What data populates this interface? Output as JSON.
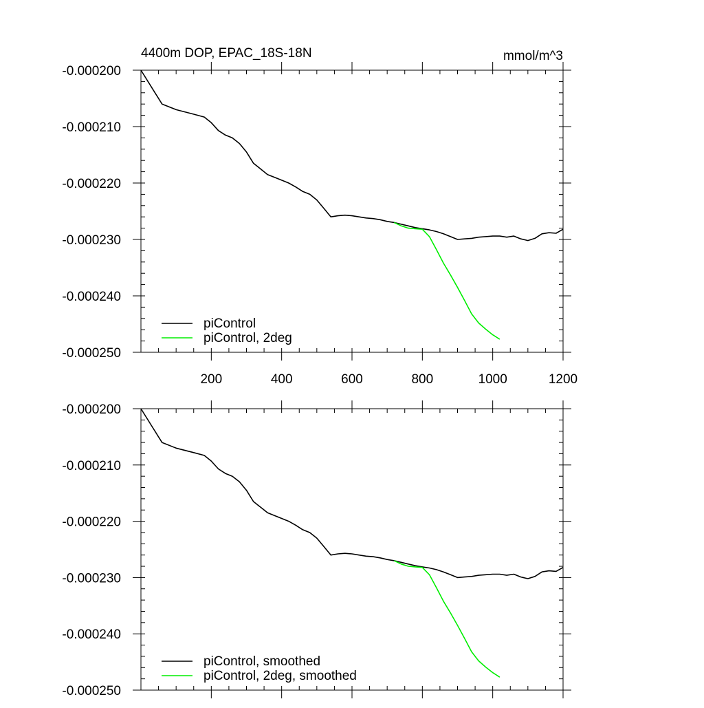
{
  "chart_data": [
    {
      "type": "line",
      "title": "4400m DOP, EPAC_18S-18N",
      "units": "mmol/m^3",
      "xlabel": "",
      "ylabel": "",
      "xlim": [
        0,
        1200
      ],
      "ylim": [
        -0.00025,
        -0.0002
      ],
      "x_ticks": [
        200,
        400,
        600,
        800,
        1000,
        1200
      ],
      "x_tick_labels": [
        "200",
        "400",
        "600",
        "800",
        "1000",
        "1200"
      ],
      "y_ticks": [
        -0.0002,
        -0.00021,
        -0.00022,
        -0.00023,
        -0.00024,
        -0.00025
      ],
      "y_tick_labels": [
        "-0.000200",
        "-0.000210",
        "-0.000220",
        "-0.000230",
        "-0.000240",
        "-0.000250"
      ],
      "legend_position": "bottom-left",
      "series": [
        {
          "name": "piControl",
          "color": "#000000",
          "x": [
            0,
            30,
            60,
            100,
            150,
            180,
            200,
            220,
            240,
            260,
            280,
            300,
            320,
            340,
            360,
            380,
            400,
            420,
            440,
            460,
            480,
            500,
            520,
            540,
            560,
            580,
            600,
            620,
            640,
            660,
            680,
            700,
            720,
            740,
            760,
            780,
            800,
            820,
            840,
            860,
            880,
            900,
            920,
            940,
            960,
            980,
            1000,
            1020,
            1040,
            1060,
            1080,
            1100,
            1120,
            1140,
            1160,
            1180,
            1200
          ],
          "y": [
            -0.0002,
            -0.000203,
            -0.000206,
            -0.000207,
            -0.0002078,
            -0.0002083,
            -0.0002093,
            -0.0002107,
            -0.0002115,
            -0.000212,
            -0.000213,
            -0.0002145,
            -0.0002165,
            -0.0002175,
            -0.0002185,
            -0.000219,
            -0.0002195,
            -0.00022,
            -0.0002207,
            -0.0002215,
            -0.000222,
            -0.000223,
            -0.0002245,
            -0.000226,
            -0.0002258,
            -0.0002257,
            -0.0002258,
            -0.000226,
            -0.0002262,
            -0.0002263,
            -0.0002265,
            -0.0002268,
            -0.000227,
            -0.0002273,
            -0.0002276,
            -0.0002279,
            -0.0002281,
            -0.0002283,
            -0.0002286,
            -0.000229,
            -0.0002295,
            -0.00023,
            -0.0002299,
            -0.0002298,
            -0.0002296,
            -0.0002295,
            -0.0002294,
            -0.0002294,
            -0.0002296,
            -0.0002294,
            -0.0002299,
            -0.0002302,
            -0.0002298,
            -0.000229,
            -0.0002288,
            -0.0002289,
            -0.0002282
          ]
        },
        {
          "name": "piControl, 2deg",
          "color": "#00ee00",
          "x": [
            720,
            740,
            760,
            780,
            800,
            820,
            840,
            860,
            880,
            900,
            920,
            940,
            960,
            980,
            1000,
            1020
          ],
          "y": [
            -0.000227,
            -0.0002276,
            -0.000228,
            -0.0002281,
            -0.0002282,
            -0.0002295,
            -0.0002318,
            -0.0002342,
            -0.0002363,
            -0.0002385,
            -0.0002408,
            -0.0002432,
            -0.0002448,
            -0.0002459,
            -0.0002469,
            -0.0002477
          ]
        }
      ]
    },
    {
      "type": "line",
      "title": "",
      "units": "",
      "xlabel": "",
      "ylabel": "",
      "xlim": [
        0,
        1200
      ],
      "ylim": [
        -0.00025,
        -0.0002
      ],
      "x_ticks": [
        200,
        400,
        600,
        800,
        1000,
        1200
      ],
      "x_tick_labels": [],
      "y_ticks": [
        -0.0002,
        -0.00021,
        -0.00022,
        -0.00023,
        -0.00024,
        -0.00025
      ],
      "y_tick_labels": [
        "-0.000200",
        "-0.000210",
        "-0.000220",
        "-0.000230",
        "-0.000240",
        "-0.000250"
      ],
      "legend_position": "bottom-left",
      "series": [
        {
          "name": "piControl, smoothed",
          "color": "#000000",
          "x": [
            0,
            30,
            60,
            100,
            150,
            180,
            200,
            220,
            240,
            260,
            280,
            300,
            320,
            340,
            360,
            380,
            400,
            420,
            440,
            460,
            480,
            500,
            520,
            540,
            560,
            580,
            600,
            620,
            640,
            660,
            680,
            700,
            720,
            740,
            760,
            780,
            800,
            820,
            840,
            860,
            880,
            900,
            920,
            940,
            960,
            980,
            1000,
            1020,
            1040,
            1060,
            1080,
            1100,
            1120,
            1140,
            1160,
            1180,
            1200
          ],
          "y": [
            -0.0002,
            -0.000203,
            -0.000206,
            -0.000207,
            -0.0002078,
            -0.0002083,
            -0.0002093,
            -0.0002107,
            -0.0002115,
            -0.000212,
            -0.000213,
            -0.0002145,
            -0.0002165,
            -0.0002175,
            -0.0002185,
            -0.000219,
            -0.0002195,
            -0.00022,
            -0.0002207,
            -0.0002215,
            -0.000222,
            -0.000223,
            -0.0002245,
            -0.000226,
            -0.0002258,
            -0.0002257,
            -0.0002258,
            -0.000226,
            -0.0002262,
            -0.0002263,
            -0.0002265,
            -0.0002268,
            -0.000227,
            -0.0002273,
            -0.0002276,
            -0.0002279,
            -0.0002281,
            -0.0002283,
            -0.0002286,
            -0.000229,
            -0.0002295,
            -0.00023,
            -0.0002299,
            -0.0002298,
            -0.0002296,
            -0.0002295,
            -0.0002294,
            -0.0002294,
            -0.0002296,
            -0.0002294,
            -0.0002299,
            -0.0002302,
            -0.0002298,
            -0.000229,
            -0.0002288,
            -0.0002289,
            -0.0002282
          ]
        },
        {
          "name": "piControl, 2deg, smoothed",
          "color": "#00ee00",
          "x": [
            720,
            740,
            760,
            780,
            800,
            820,
            840,
            860,
            880,
            900,
            920,
            940,
            960,
            980,
            1000,
            1020
          ],
          "y": [
            -0.000227,
            -0.0002276,
            -0.000228,
            -0.0002281,
            -0.0002282,
            -0.0002295,
            -0.0002318,
            -0.0002342,
            -0.0002363,
            -0.0002385,
            -0.0002408,
            -0.0002432,
            -0.0002448,
            -0.0002459,
            -0.0002469,
            -0.0002477
          ]
        }
      ]
    }
  ]
}
